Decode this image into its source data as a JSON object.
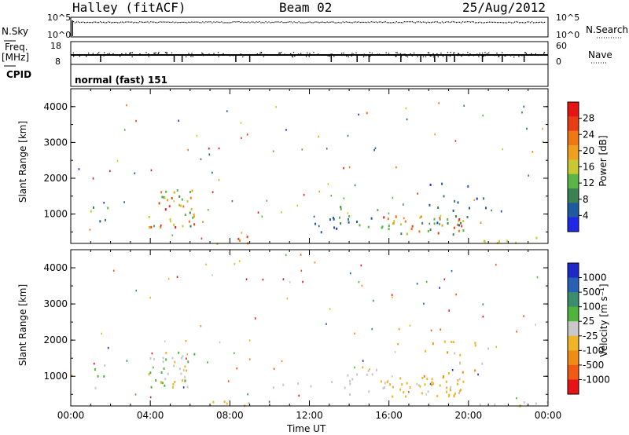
{
  "header": {
    "title": "Halley (fitACF)",
    "beam": "Beam 02",
    "date": "25/Aug/2012"
  },
  "strips": {
    "nsky_label": "N.Sky",
    "nsky_ticks": [
      "10^5",
      "10^0"
    ],
    "nsearch_label": "N.Search",
    "nsearch_ticks": [
      "10^5",
      "10^0"
    ],
    "freq_label": "Freq.",
    "freq_unit": "[MHz]",
    "freq_ticks": [
      "18",
      "8"
    ],
    "nave_label": "Nave",
    "nave_ticks": [
      "60",
      "0"
    ],
    "cpid_label": "CPID",
    "cpid_value": "normal (fast) 151"
  },
  "colors": {
    "power_scale": [
      "#1e28e6",
      "#1e5aa0",
      "#3c8250",
      "#5ab446",
      "#c8c832",
      "#f0a01e",
      "#f07814",
      "#e83c14",
      "#e61414"
    ],
    "velocity_scale": [
      "#1e28c8",
      "#2860b4",
      "#3c8c6e",
      "#50b43c",
      "#c8c8c8",
      "#f0b428",
      "#f08c14",
      "#f05a14",
      "#e61414"
    ]
  },
  "chart_data": [
    {
      "type": "heatmap",
      "title": "",
      "ylabel": "Slant Range [km]",
      "xlabel": "Time UT",
      "x_ticks": [
        "00:00",
        "04:00",
        "08:00",
        "12:00",
        "16:00",
        "20:00",
        "00:00"
      ],
      "y_ticks": [
        1000,
        2000,
        3000,
        4000
      ],
      "xlim_hours": [
        0,
        24
      ],
      "ylim": [
        180,
        4500
      ],
      "colorbar_label": "Power [dB]",
      "colorbar_ticks": [
        4,
        8,
        12,
        16,
        20,
        24,
        28
      ],
      "colorbar_range": [
        0,
        32
      ],
      "scatter_regions": [
        {
          "t": [
            3.9,
            6.2
          ],
          "r": [
            650,
            1700
          ],
          "level": [
            8,
            30
          ],
          "density": 0.75
        },
        {
          "t": [
            0.9,
            2.0
          ],
          "r": [
            700,
            1400
          ],
          "level": [
            4,
            16
          ],
          "density": 0.35
        },
        {
          "t": [
            13.0,
            16.0
          ],
          "r": [
            600,
            1300
          ],
          "level": [
            2,
            14
          ],
          "density": 0.35
        },
        {
          "t": [
            15.5,
            19.8
          ],
          "r": [
            450,
            1000
          ],
          "level": [
            6,
            30
          ],
          "density": 0.85
        },
        {
          "t": [
            18.0,
            21.0
          ],
          "r": [
            700,
            2000
          ],
          "level": [
            2,
            10
          ],
          "density": 0.18
        },
        {
          "t": [
            6.8,
            9.0
          ],
          "r": [
            180,
            400
          ],
          "level": [
            14,
            28
          ],
          "density": 0.5
        },
        {
          "t": [
            20.5,
            24.0
          ],
          "r": [
            180,
            380
          ],
          "level": [
            14,
            28
          ],
          "density": 0.5
        },
        {
          "t": [
            10.0,
            14.0
          ],
          "r": [
            500,
            900
          ],
          "level": [
            2,
            10
          ],
          "density": 0.12
        }
      ]
    },
    {
      "type": "heatmap",
      "title": "",
      "ylabel": "Slant Range [km]",
      "xlabel": "Time UT",
      "x_ticks": [
        "00:00",
        "04:00",
        "08:00",
        "12:00",
        "16:00",
        "20:00",
        "00:00"
      ],
      "y_ticks": [
        1000,
        2000,
        3000,
        4000
      ],
      "xlim_hours": [
        0,
        24
      ],
      "ylim": [
        180,
        4500
      ],
      "colorbar_label": "Velocity [m s⁻¹]",
      "colorbar_ticks": [
        1000,
        500,
        100,
        25,
        -25,
        -100,
        -500,
        -1000
      ],
      "colorbar_range": [
        -1200,
        1200
      ],
      "scatter_regions": [
        {
          "t": [
            3.9,
            6.2
          ],
          "r": [
            650,
            1700
          ],
          "level": [
            -300,
            400
          ],
          "density": 0.75
        },
        {
          "t": [
            0.9,
            2.0
          ],
          "r": [
            700,
            1400
          ],
          "level": [
            50,
            300
          ],
          "density": 0.35
        },
        {
          "t": [
            13.0,
            16.0
          ],
          "r": [
            500,
            1300
          ],
          "level": [
            -150,
            60
          ],
          "density": 0.35
        },
        {
          "t": [
            15.5,
            19.8
          ],
          "r": [
            450,
            1000
          ],
          "level": [
            -400,
            -60
          ],
          "density": 0.85
        },
        {
          "t": [
            17.5,
            21.0
          ],
          "r": [
            700,
            2000
          ],
          "level": [
            -600,
            -100
          ],
          "density": 0.2
        },
        {
          "t": [
            6.8,
            9.0
          ],
          "r": [
            180,
            400
          ],
          "level": [
            -300,
            -50
          ],
          "density": 0.5
        },
        {
          "t": [
            20.5,
            24.0
          ],
          "r": [
            180,
            380
          ],
          "level": [
            -300,
            -50
          ],
          "density": 0.5
        },
        {
          "t": [
            10.0,
            14.0
          ],
          "r": [
            500,
            900
          ],
          "level": [
            -100,
            100
          ],
          "density": 0.12
        }
      ]
    }
  ]
}
